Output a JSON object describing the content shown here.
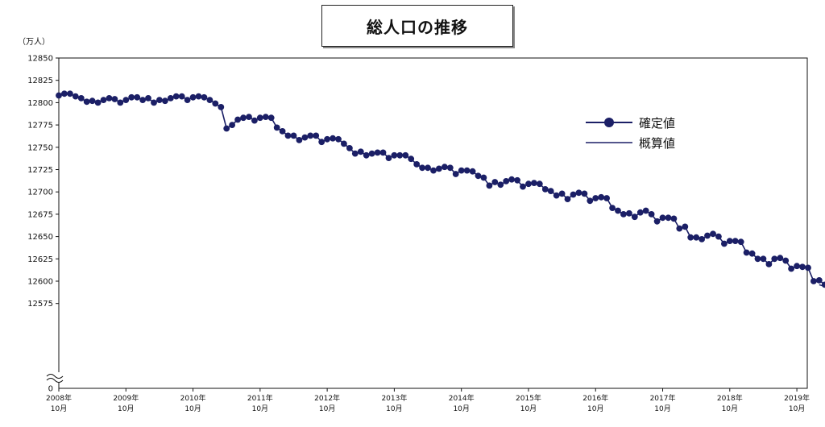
{
  "chart_data": {
    "type": "line",
    "title": "総人口の推移",
    "ylabel": "（万人）",
    "ylim": [
      12550,
      12850
    ],
    "yticks": [
      12850,
      12825,
      12800,
      12775,
      12750,
      12725,
      12700,
      12675,
      12650,
      12625,
      12600,
      12575
    ],
    "y_zero_label": "0",
    "xtick_labels": [
      {
        "year": "2008年",
        "month": "10月"
      },
      {
        "year": "2009年",
        "month": "10月"
      },
      {
        "year": "2010年",
        "month": "10月"
      },
      {
        "year": "2011年",
        "month": "10月"
      },
      {
        "year": "2012年",
        "month": "10月"
      },
      {
        "year": "2013年",
        "month": "10月"
      },
      {
        "year": "2014年",
        "month": "10月"
      },
      {
        "year": "2015年",
        "month": "10月"
      },
      {
        "year": "2016年",
        "month": "10月"
      },
      {
        "year": "2017年",
        "month": "10月"
      },
      {
        "year": "2018年",
        "month": "10月"
      },
      {
        "year": "2019年",
        "month": "10月"
      }
    ],
    "legend": {
      "position": "right",
      "confirmed": "確定値",
      "estimate": "概算値"
    },
    "series": [
      {
        "name": "確定値",
        "marker": true,
        "start": "2008-10",
        "values": [
          12808,
          12810,
          12810,
          12807,
          12805,
          12801,
          12802,
          12800,
          12803,
          12805,
          12804,
          12800,
          12803,
          12806,
          12806,
          12803,
          12805,
          12800,
          12803,
          12802,
          12805,
          12807,
          12807,
          12803,
          12806,
          12807,
          12806,
          12803,
          12799,
          12795,
          12771,
          12775,
          12781,
          12783,
          12784,
          12780,
          12783,
          12784,
          12783,
          12772,
          12768,
          12763,
          12763,
          12758,
          12761,
          12763,
          12763,
          12756,
          12759,
          12760,
          12759,
          12754,
          12749,
          12743,
          12745,
          12741,
          12743,
          12744,
          12744,
          12738,
          12741,
          12741,
          12741,
          12737,
          12731,
          12727,
          12727,
          12724,
          12726,
          12728,
          12727,
          12720,
          12724,
          12724,
          12723,
          12718,
          12716,
          12707,
          12711,
          12708,
          12712,
          12714,
          12713,
          12706,
          12709,
          12710,
          12709,
          12703,
          12701,
          12696,
          12698,
          12692,
          12697,
          12699,
          12698,
          12690,
          12693,
          12694,
          12693,
          12682,
          12679,
          12675,
          12676,
          12672,
          12677,
          12679,
          12675,
          12667,
          12671,
          12671,
          12670,
          12659,
          12661,
          12649,
          12649,
          12647,
          12651,
          12653,
          12650,
          12642,
          12645,
          12645,
          12644,
          12632,
          12631,
          12625,
          12625,
          12619,
          12625,
          12626,
          12623,
          12614,
          12617,
          12616,
          12615,
          12600,
          12601,
          12596
        ]
      },
      {
        "name": "概算値",
        "marker": false,
        "start": "2020-02",
        "values": [
          12596,
          12594,
          12590,
          12593,
          12596,
          12593
        ]
      }
    ]
  }
}
